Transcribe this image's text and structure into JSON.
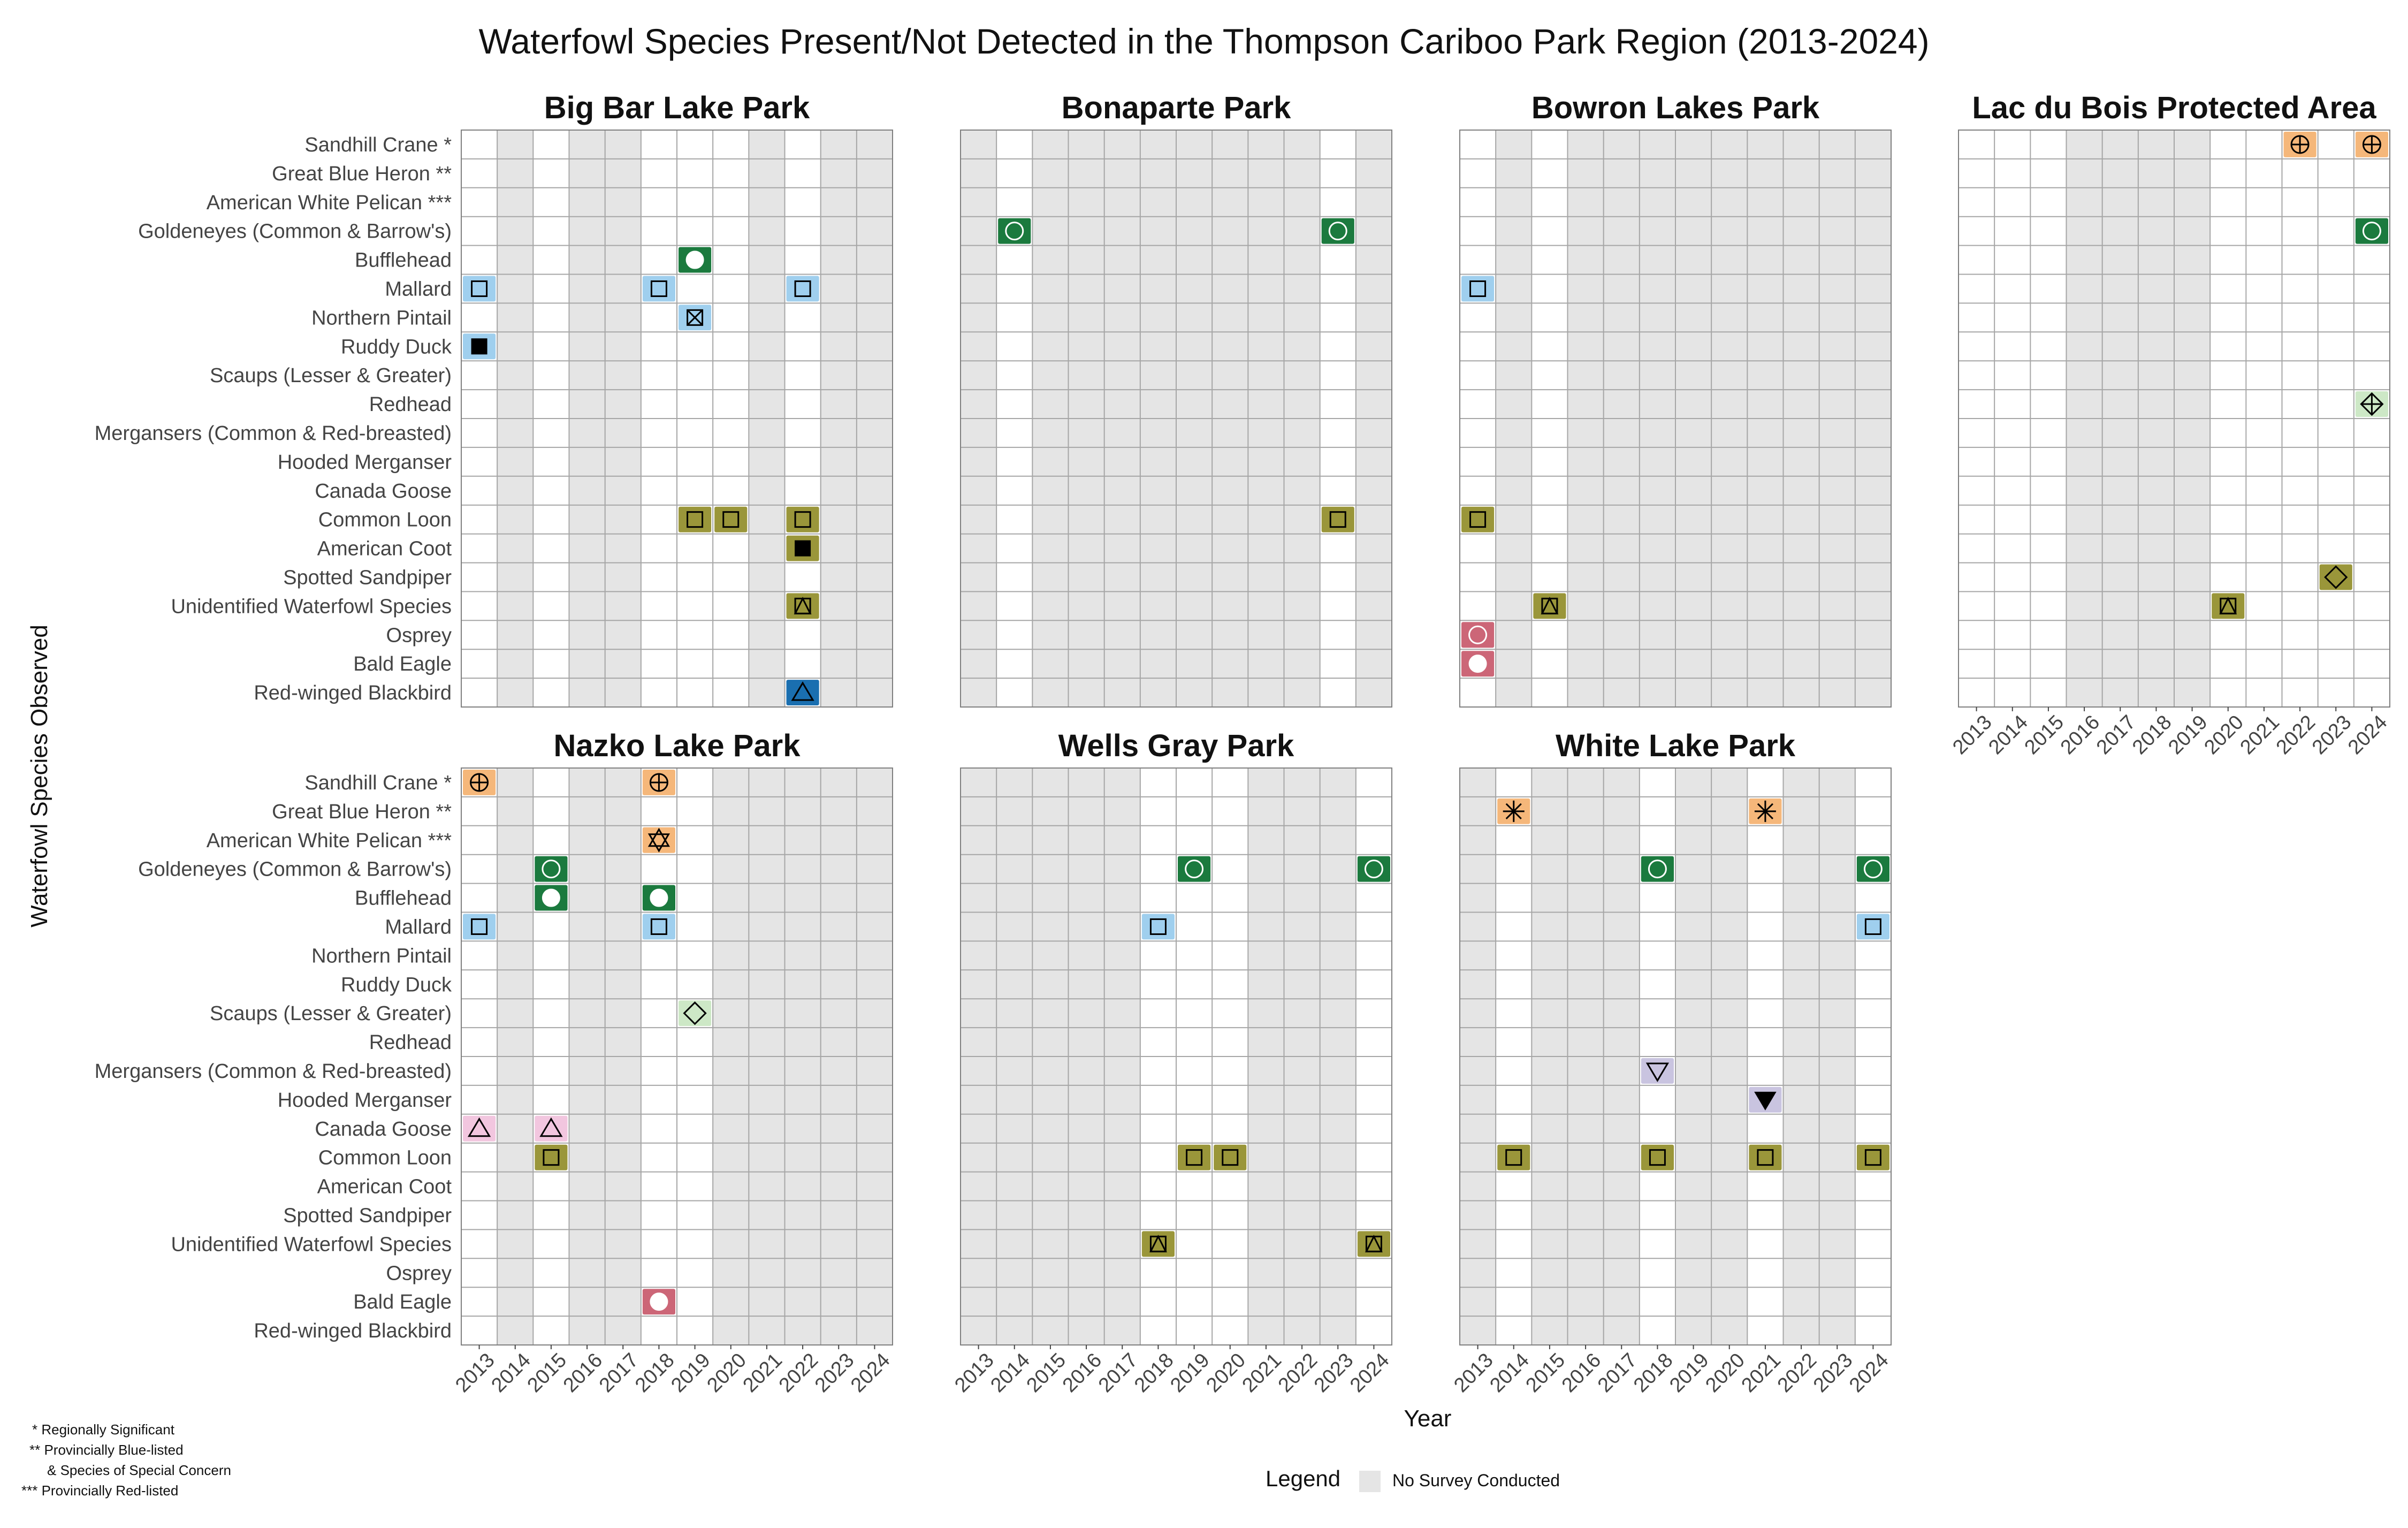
{
  "chart_data": {
    "type": "heatmap",
    "title": "Waterfowl Species Present/Not Detected in the Thompson Cariboo Park Region (2013-2024)",
    "xlabel": "Year",
    "ylabel": "Waterfowl Species Observed",
    "years": [
      2013,
      2014,
      2015,
      2016,
      2017,
      2018,
      2019,
      2020,
      2021,
      2022,
      2023,
      2024
    ],
    "species": [
      "Sandhill Crane *",
      "Great Blue Heron **",
      "American White Pelican ***",
      "Goldeneyes (Common & Barrow's)",
      "Bufflehead",
      "Mallard",
      "Northern Pintail",
      "Ruddy Duck",
      "Scaups (Lesser & Greater)",
      "Redhead",
      "Mergansers (Common & Red-breasted)",
      "Hooded Merganser",
      "Canada Goose",
      "Common Loon",
      "American Coot",
      "Spotted Sandpiper",
      "Unidentified Waterfowl Species",
      "Osprey",
      "Bald Eagle",
      "Red-winged Blackbird"
    ],
    "species_styles": {
      "Sandhill Crane *": {
        "fill": "#f5b77a",
        "shape": "circle-plus"
      },
      "Great Blue Heron **": {
        "fill": "#f5b77a",
        "shape": "asterisk"
      },
      "American White Pelican ***": {
        "fill": "#f5b77a",
        "shape": "star-of-david"
      },
      "Goldeneyes (Common & Barrow's)": {
        "fill": "#1b7a3e",
        "shape": "circle-open"
      },
      "Bufflehead": {
        "fill": "#1b7a3e",
        "shape": "circle-filled"
      },
      "Mallard": {
        "fill": "#9fcfee",
        "shape": "square-open"
      },
      "Northern Pintail": {
        "fill": "#9fcfee",
        "shape": "square-x"
      },
      "Ruddy Duck": {
        "fill": "#9fcfee",
        "shape": "square-filled"
      },
      "Scaups (Lesser & Greater)": {
        "fill": "#cde8c6",
        "shape": "diamond-open"
      },
      "Redhead": {
        "fill": "#cde8c6",
        "shape": "diamond-plus"
      },
      "Mergansers (Common & Red-breasted)": {
        "fill": "#c9c4e0",
        "shape": "triangle-down-open"
      },
      "Hooded Merganser": {
        "fill": "#c9c4e0",
        "shape": "triangle-down-filled"
      },
      "Canada Goose": {
        "fill": "#f2c6df",
        "shape": "triangle-open"
      },
      "Common Loon": {
        "fill": "#9a963a",
        "shape": "square-open"
      },
      "American Coot": {
        "fill": "#9a963a",
        "shape": "square-filled"
      },
      "Spotted Sandpiper": {
        "fill": "#9a963a",
        "shape": "diamond-open"
      },
      "Unidentified Waterfowl Species": {
        "fill": "#9a963a",
        "shape": "square-triangle"
      },
      "Osprey": {
        "fill": "#cc6677",
        "shape": "circle-open"
      },
      "Bald Eagle": {
        "fill": "#cc6677",
        "shape": "circle-filled"
      },
      "Red-winged Blackbird": {
        "fill": "#1a6fb0",
        "shape": "triangle-open"
      }
    },
    "colors": {
      "no_survey": "#e5e5e5",
      "grid_line": "#a6a6a6",
      "panel_border": "#7f7f7f",
      "surveyed": "#ffffff"
    },
    "panels": [
      {
        "name": "Big Bar Lake Park",
        "no_survey_years": [
          2014,
          2016,
          2017,
          2021,
          2023,
          2024
        ],
        "observations": [
          {
            "species": "Bufflehead",
            "year": 2019
          },
          {
            "species": "Mallard",
            "year": 2013
          },
          {
            "species": "Mallard",
            "year": 2018
          },
          {
            "species": "Mallard",
            "year": 2022
          },
          {
            "species": "Northern Pintail",
            "year": 2019
          },
          {
            "species": "Ruddy Duck",
            "year": 2013
          },
          {
            "species": "Common Loon",
            "year": 2019
          },
          {
            "species": "Common Loon",
            "year": 2020
          },
          {
            "species": "Common Loon",
            "year": 2022
          },
          {
            "species": "American Coot",
            "year": 2022
          },
          {
            "species": "Unidentified Waterfowl Species",
            "year": 2022
          },
          {
            "species": "Red-winged Blackbird",
            "year": 2022
          }
        ]
      },
      {
        "name": "Bonaparte Park",
        "no_survey_years": [
          2013,
          2015,
          2016,
          2017,
          2018,
          2019,
          2020,
          2021,
          2022,
          2024
        ],
        "observations": [
          {
            "species": "Goldeneyes (Common & Barrow's)",
            "year": 2014
          },
          {
            "species": "Goldeneyes (Common & Barrow's)",
            "year": 2023
          },
          {
            "species": "Common Loon",
            "year": 2023
          }
        ]
      },
      {
        "name": "Bowron Lakes Park",
        "no_survey_years": [
          2014,
          2016,
          2017,
          2018,
          2019,
          2020,
          2021,
          2022,
          2023,
          2024
        ],
        "observations": [
          {
            "species": "Mallard",
            "year": 2013
          },
          {
            "species": "Common Loon",
            "year": 2013
          },
          {
            "species": "Unidentified Waterfowl Species",
            "year": 2015
          },
          {
            "species": "Osprey",
            "year": 2013
          },
          {
            "species": "Bald Eagle",
            "year": 2013
          }
        ]
      },
      {
        "name": "Lac du Bois Protected Area",
        "no_survey_years": [
          2016,
          2017,
          2018,
          2019
        ],
        "observations": [
          {
            "species": "Sandhill Crane *",
            "year": 2022
          },
          {
            "species": "Sandhill Crane *",
            "year": 2024
          },
          {
            "species": "Goldeneyes (Common & Barrow's)",
            "year": 2024
          },
          {
            "species": "Redhead",
            "year": 2024
          },
          {
            "species": "Spotted Sandpiper",
            "year": 2023
          },
          {
            "species": "Unidentified Waterfowl Species",
            "year": 2020
          }
        ]
      },
      {
        "name": "Nazko Lake Park",
        "no_survey_years": [
          2014,
          2016,
          2017,
          2020,
          2021,
          2022,
          2023,
          2024
        ],
        "observations": [
          {
            "species": "Sandhill Crane *",
            "year": 2013
          },
          {
            "species": "Sandhill Crane *",
            "year": 2018
          },
          {
            "species": "American White Pelican ***",
            "year": 2018
          },
          {
            "species": "Goldeneyes (Common & Barrow's)",
            "year": 2015
          },
          {
            "species": "Bufflehead",
            "year": 2015
          },
          {
            "species": "Bufflehead",
            "year": 2018
          },
          {
            "species": "Mallard",
            "year": 2013
          },
          {
            "species": "Mallard",
            "year": 2018
          },
          {
            "species": "Scaups (Lesser & Greater)",
            "year": 2019
          },
          {
            "species": "Canada Goose",
            "year": 2013
          },
          {
            "species": "Canada Goose",
            "year": 2015
          },
          {
            "species": "Common Loon",
            "year": 2015
          },
          {
            "species": "Bald Eagle",
            "year": 2018
          }
        ]
      },
      {
        "name": "Wells Gray Park",
        "no_survey_years": [
          2013,
          2014,
          2015,
          2016,
          2017,
          2021,
          2022,
          2023
        ],
        "observations": [
          {
            "species": "Goldeneyes (Common & Barrow's)",
            "year": 2019
          },
          {
            "species": "Goldeneyes (Common & Barrow's)",
            "year": 2024
          },
          {
            "species": "Mallard",
            "year": 2018
          },
          {
            "species": "Common Loon",
            "year": 2019
          },
          {
            "species": "Common Loon",
            "year": 2020
          },
          {
            "species": "Unidentified Waterfowl Species",
            "year": 2018
          },
          {
            "species": "Unidentified Waterfowl Species",
            "year": 2024
          }
        ]
      },
      {
        "name": "White Lake Park",
        "no_survey_years": [
          2013,
          2015,
          2016,
          2017,
          2019,
          2020,
          2022,
          2023
        ],
        "observations": [
          {
            "species": "Great Blue Heron **",
            "year": 2014
          },
          {
            "species": "Great Blue Heron **",
            "year": 2021
          },
          {
            "species": "Goldeneyes (Common & Barrow's)",
            "year": 2018
          },
          {
            "species": "Goldeneyes (Common & Barrow's)",
            "year": 2024
          },
          {
            "species": "Mallard",
            "year": 2024
          },
          {
            "species": "Mergansers (Common & Red-breasted)",
            "year": 2018
          },
          {
            "species": "Hooded Merganser",
            "year": 2021
          },
          {
            "species": "Common Loon",
            "year": 2014
          },
          {
            "species": "Common Loon",
            "year": 2018
          },
          {
            "species": "Common Loon",
            "year": 2021
          },
          {
            "species": "Common Loon",
            "year": 2024
          }
        ]
      }
    ],
    "legend": {
      "title": "Legend",
      "items": [
        {
          "label": "No Survey Conducted",
          "color": "#e5e5e5"
        }
      ]
    },
    "notes": [
      "* Regionally Significant",
      "** Provincially Blue-listed",
      "& Species of Special Concern",
      "*** Provincially Red-listed"
    ]
  }
}
